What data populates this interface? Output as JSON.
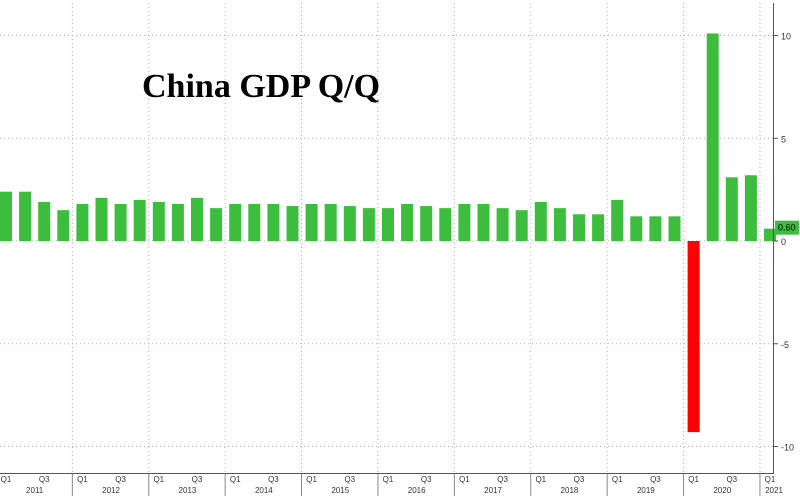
{
  "chart_data": {
    "type": "bar",
    "title": "China GDP Q/Q",
    "xlabel": "",
    "ylabel": "",
    "ylim": [
      -10,
      11
    ],
    "yticks": [
      10,
      5,
      0,
      -5,
      -10
    ],
    "grid": true,
    "legend": "none",
    "last_value_label": "0.60",
    "categories": [
      "2011 Q1",
      "2011 Q2",
      "2011 Q3",
      "2011 Q4",
      "2012 Q1",
      "2012 Q2",
      "2012 Q3",
      "2012 Q4",
      "2013 Q1",
      "2013 Q2",
      "2013 Q3",
      "2013 Q4",
      "2014 Q1",
      "2014 Q2",
      "2014 Q3",
      "2014 Q4",
      "2015 Q1",
      "2015 Q2",
      "2015 Q3",
      "2015 Q4",
      "2016 Q1",
      "2016 Q2",
      "2016 Q3",
      "2016 Q4",
      "2017 Q1",
      "2017 Q2",
      "2017 Q3",
      "2017 Q4",
      "2018 Q1",
      "2018 Q2",
      "2018 Q3",
      "2018 Q4",
      "2019 Q1",
      "2019 Q2",
      "2019 Q3",
      "2019 Q4",
      "2020 Q1",
      "2020 Q2",
      "2020 Q3",
      "2020 Q4",
      "2021 Q1"
    ],
    "values": [
      2.4,
      2.4,
      1.9,
      1.5,
      1.8,
      2.1,
      1.8,
      2.0,
      1.9,
      1.8,
      2.1,
      1.6,
      1.8,
      1.8,
      1.8,
      1.7,
      1.8,
      1.8,
      1.7,
      1.6,
      1.6,
      1.8,
      1.7,
      1.6,
      1.8,
      1.8,
      1.6,
      1.5,
      1.9,
      1.6,
      1.3,
      1.3,
      2.0,
      1.2,
      1.2,
      1.2,
      -9.3,
      10.1,
      3.1,
      3.2,
      0.6
    ],
    "x_axis": {
      "quarter_labels": [
        "Q1",
        "Q3"
      ],
      "years": [
        "2011",
        "2012",
        "2013",
        "2014",
        "2015",
        "2016",
        "2017",
        "2018",
        "2019",
        "2020",
        "2021"
      ]
    },
    "colors": {
      "positive": "#3dbd3d",
      "negative": "#ff0000",
      "grid": "#b0b0b0",
      "axis": "#555555",
      "last_value_box": "#3dbd3d"
    }
  }
}
